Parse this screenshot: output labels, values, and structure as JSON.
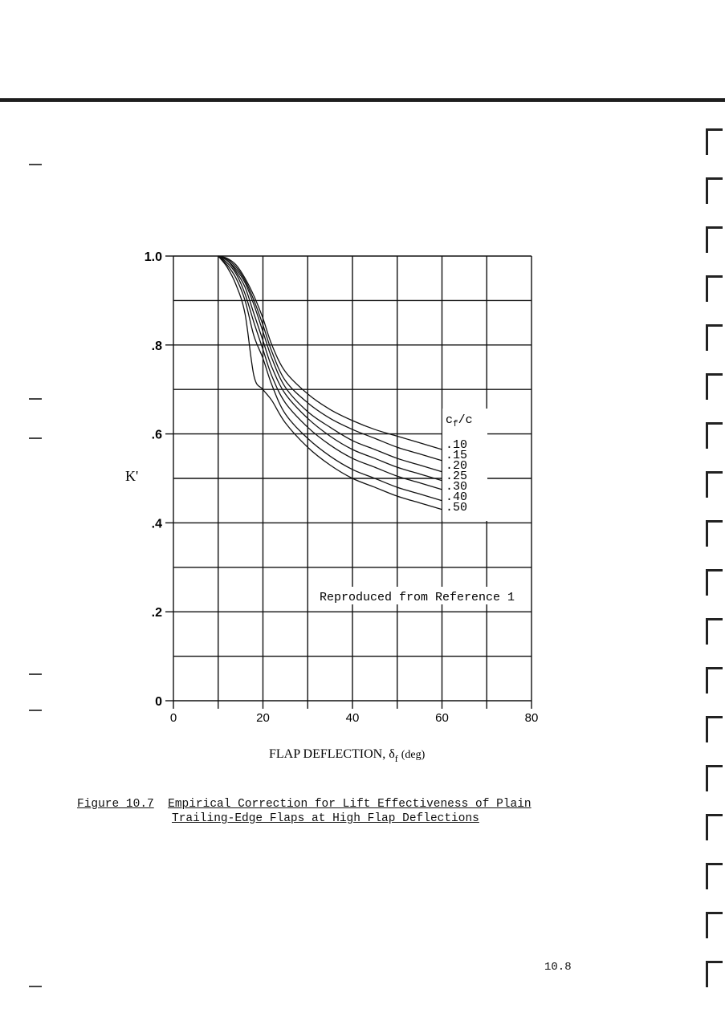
{
  "chart_data": {
    "type": "line",
    "title": "",
    "xlabel": "FLAP DEFLECTION, δ",
    "xlabel_sub": "f",
    "xlabel_unit": "(deg)",
    "ylabel": "K'",
    "xlim": [
      0,
      80
    ],
    "ylim": [
      0,
      1.0
    ],
    "x_ticks": [
      0,
      20,
      40,
      60,
      80
    ],
    "x_tick_labels": [
      "0",
      "20",
      "40",
      "60",
      "80"
    ],
    "y_ticks": [
      0,
      0.2,
      0.4,
      0.6,
      0.8,
      1.0
    ],
    "y_tick_labels": [
      "0",
      ".2",
      ".4",
      ".6",
      ".8",
      "1.0"
    ],
    "grid": true,
    "legend_title": "cf/c",
    "legend_title_main": "c",
    "legend_title_sub": "f",
    "legend_title_tail": "/c",
    "annotation": "Reproduced from Reference 1",
    "series": [
      {
        "name": ".10",
        "x": [
          10,
          12,
          14,
          16,
          18,
          20,
          22,
          25,
          30,
          35,
          40,
          45,
          50,
          55,
          60
        ],
        "y": [
          1.0,
          0.995,
          0.98,
          0.95,
          0.91,
          0.86,
          0.8,
          0.74,
          0.69,
          0.655,
          0.63,
          0.61,
          0.595,
          0.58,
          0.565
        ]
      },
      {
        "name": ".15",
        "x": [
          10,
          12,
          14,
          16,
          18,
          20,
          22,
          25,
          30,
          35,
          40,
          45,
          50,
          55,
          60
        ],
        "y": [
          1.0,
          0.993,
          0.975,
          0.945,
          0.9,
          0.845,
          0.785,
          0.72,
          0.67,
          0.635,
          0.61,
          0.59,
          0.57,
          0.555,
          0.54
        ]
      },
      {
        "name": ".20",
        "x": [
          10,
          12,
          14,
          16,
          18,
          20,
          22,
          25,
          30,
          35,
          40,
          45,
          50,
          55,
          60
        ],
        "y": [
          1.0,
          0.99,
          0.97,
          0.94,
          0.89,
          0.83,
          0.77,
          0.705,
          0.65,
          0.615,
          0.585,
          0.565,
          0.545,
          0.53,
          0.515
        ]
      },
      {
        "name": ".25",
        "x": [
          10,
          12,
          14,
          16,
          18,
          20,
          22,
          25,
          30,
          35,
          40,
          45,
          50,
          55,
          60
        ],
        "y": [
          1.0,
          0.99,
          0.965,
          0.93,
          0.87,
          0.81,
          0.75,
          0.69,
          0.635,
          0.595,
          0.565,
          0.545,
          0.525,
          0.51,
          0.495
        ]
      },
      {
        "name": ".30",
        "x": [
          10,
          12,
          14,
          16,
          18,
          20,
          22,
          25,
          30,
          35,
          40,
          45,
          50,
          55,
          60
        ],
        "y": [
          1.0,
          0.985,
          0.96,
          0.915,
          0.85,
          0.79,
          0.73,
          0.67,
          0.615,
          0.575,
          0.545,
          0.525,
          0.505,
          0.49,
          0.475
        ]
      },
      {
        "name": ".40",
        "x": [
          10,
          12,
          14,
          16,
          18,
          20,
          22,
          25,
          30,
          35,
          40,
          45,
          50,
          55,
          60
        ],
        "y": [
          1.0,
          0.98,
          0.95,
          0.9,
          0.82,
          0.77,
          0.71,
          0.645,
          0.59,
          0.55,
          0.52,
          0.5,
          0.48,
          0.465,
          0.45
        ]
      },
      {
        "name": ".50",
        "x": [
          10,
          12,
          14,
          16,
          18,
          20,
          22,
          25,
          30,
          35,
          40,
          45,
          50,
          55,
          60
        ],
        "y": [
          1.0,
          0.975,
          0.935,
          0.87,
          0.73,
          0.7,
          0.675,
          0.625,
          0.57,
          0.53,
          0.5,
          0.48,
          0.46,
          0.445,
          0.43
        ]
      }
    ]
  },
  "caption": {
    "label": "Figure 10.7",
    "line1": "Empirical Correction for Lift Effectiveness of Plain",
    "line2": "Trailing-Edge Flaps at High Flap Deflections"
  },
  "page_number": "10.8"
}
